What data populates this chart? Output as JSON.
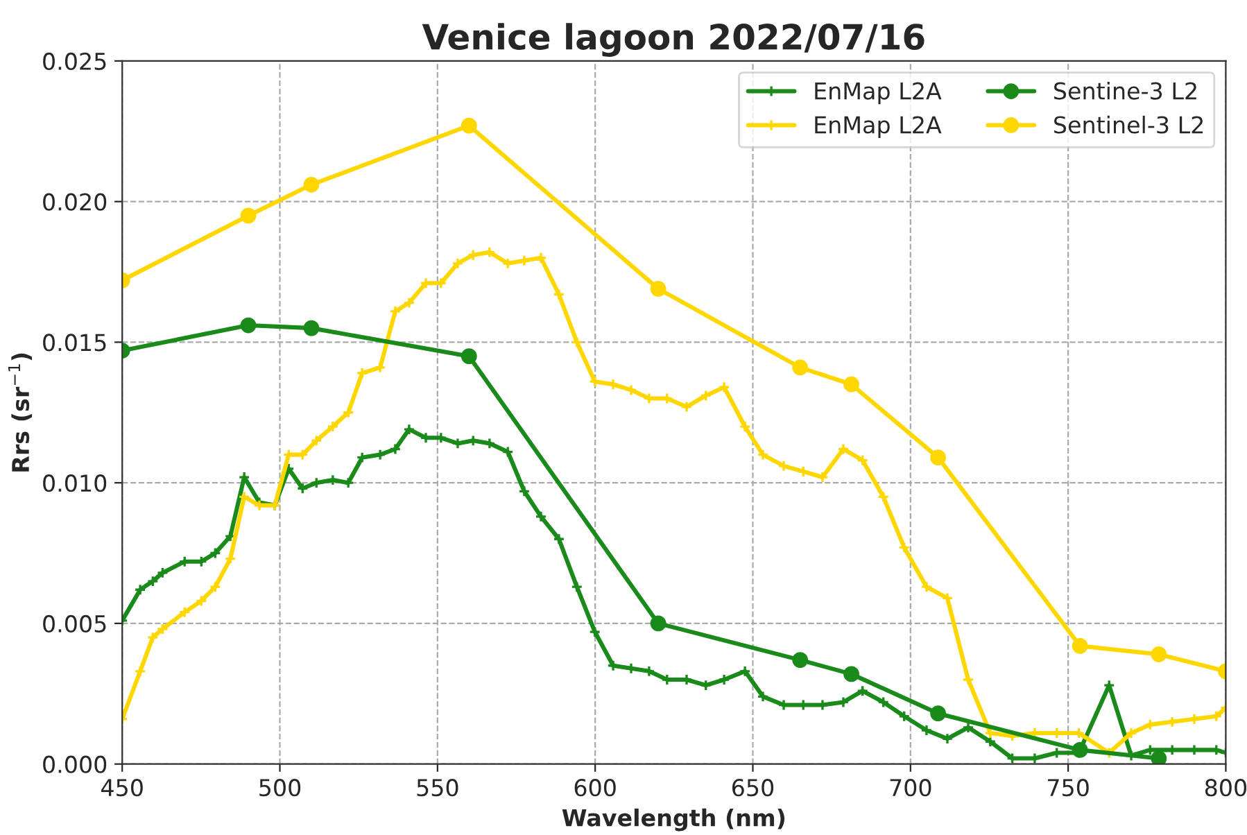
{
  "chart_data": {
    "type": "line",
    "title": "Venice lagoon 2022/07/16",
    "xlabel": "Wavelength (nm)",
    "ylabel": "Rrs (sr$^{−1}$)",
    "xlim": [
      450,
      800
    ],
    "xticks": [
      450,
      500,
      550,
      600,
      650,
      700,
      750,
      800
    ],
    "ylim": [
      0,
      0.025
    ],
    "yticks": [
      {
        "value": 0,
        "label": "0.000"
      },
      {
        "value": 0.005,
        "label": "0.005"
      },
      {
        "value": 0.01,
        "label": "0.010"
      },
      {
        "value": 0.015,
        "label": "0.015"
      },
      {
        "value": 0.02,
        "label": "0.020"
      },
      {
        "value": 0.025,
        "label": "0.025"
      }
    ],
    "grid": true,
    "legend": "top right",
    "line_style": "solid",
    "series": [
      {
        "name": "EnMap L2A",
        "color": "#1a8a1a",
        "marker": "cross",
        "x": [
          450,
          455.7,
          459.7,
          462.8,
          469.8,
          475.1,
          479.5,
          484.3,
          488.7,
          493.5,
          498.4,
          502.8,
          507.2,
          511.6,
          516.8,
          521.7,
          526.1,
          531.8,
          536.6,
          541.0,
          546.3,
          551.1,
          556.4,
          561.3,
          566.5,
          572.3,
          577.5,
          582.8,
          588.5,
          594.2,
          599.9,
          605.7,
          611.4,
          617.1,
          622.8,
          629.0,
          635.1,
          640.9,
          647.5,
          653.2,
          659.8,
          666.0,
          672.1,
          678.7,
          684.8,
          691.4,
          698.0,
          705.1,
          711.7,
          718.3,
          725.3,
          732.3,
          739.4,
          746.4,
          753.4,
          763,
          770,
          776,
          783,
          790,
          797,
          800
        ],
        "values": [
          0.0051,
          0.0062,
          0.0065,
          0.0068,
          0.0072,
          0.0072,
          0.0075,
          0.0081,
          0.0102,
          0.0093,
          0.0092,
          0.0105,
          0.0098,
          0.01,
          0.0101,
          0.01,
          0.0109,
          0.011,
          0.0112,
          0.0119,
          0.0116,
          0.0116,
          0.0114,
          0.0115,
          0.0114,
          0.0111,
          0.0097,
          0.0088,
          0.008,
          0.0063,
          0.0047,
          0.0035,
          0.0034,
          0.0033,
          0.003,
          0.003,
          0.0028,
          0.003,
          0.0033,
          0.0024,
          0.0021,
          0.0021,
          0.0021,
          0.0022,
          0.0026,
          0.0022,
          0.0017,
          0.0012,
          0.0009,
          0.0013,
          0.0008,
          0.0002,
          0.0002,
          0.0004,
          0.0004,
          0.0028,
          0.0003,
          0.0005,
          0.0005,
          0.0005,
          0.0005,
          0.0004
        ]
      },
      {
        "name": "EnMap L2A",
        "color": "#ffd700",
        "marker": "cross",
        "x": [
          450,
          455.7,
          459.7,
          462.8,
          469.8,
          475.1,
          479.5,
          484.3,
          488.7,
          493.5,
          498.4,
          502.8,
          507.2,
          511.6,
          516.8,
          521.7,
          526.1,
          531.8,
          536.6,
          541.0,
          546.3,
          551.1,
          556.4,
          561.3,
          566.5,
          572.3,
          577.5,
          582.8,
          588.5,
          594.2,
          599.9,
          605.7,
          611.4,
          617.1,
          622.8,
          629.0,
          635.1,
          640.9,
          647.5,
          653.2,
          659.8,
          666.0,
          672.1,
          678.7,
          684.8,
          691.4,
          698.0,
          705.1,
          711.7,
          718.3,
          725.3,
          732.3,
          739.4,
          746.4,
          753.4,
          763,
          770,
          776,
          783,
          790,
          797,
          800
        ],
        "values": [
          0.0016,
          0.0033,
          0.0045,
          0.0048,
          0.0054,
          0.0058,
          0.0063,
          0.0073,
          0.0095,
          0.0092,
          0.0092,
          0.011,
          0.011,
          0.0115,
          0.012,
          0.0125,
          0.0139,
          0.0141,
          0.0161,
          0.0164,
          0.0171,
          0.0171,
          0.0178,
          0.0181,
          0.0182,
          0.0178,
          0.0179,
          0.018,
          0.0167,
          0.015,
          0.0136,
          0.0135,
          0.0133,
          0.013,
          0.013,
          0.0127,
          0.0131,
          0.0134,
          0.012,
          0.011,
          0.0106,
          0.0104,
          0.0102,
          0.0112,
          0.0108,
          0.0095,
          0.0077,
          0.0063,
          0.0059,
          0.003,
          0.0011,
          0.001,
          0.0011,
          0.0011,
          0.0011,
          0.0004,
          0.0011,
          0.0014,
          0.0015,
          0.0016,
          0.0017,
          0.002
        ]
      },
      {
        "name": "Sentine-3 L2",
        "color": "#1a8a1a",
        "marker": "circle",
        "x": [
          450,
          490,
          510,
          560,
          620,
          665,
          681.25,
          708.75,
          753.75,
          778.75
        ],
        "values": [
          0.0147,
          0.0156,
          0.0155,
          0.0145,
          0.005,
          0.0037,
          0.0032,
          0.0018,
          0.0005,
          0.0002
        ]
      },
      {
        "name": "Sentinel-3 L2",
        "color": "#ffd700",
        "marker": "circle",
        "x": [
          450,
          490,
          510,
          560,
          620,
          665,
          681.25,
          708.75,
          753.75,
          778.75,
          800
        ],
        "values": [
          0.0172,
          0.0195,
          0.0206,
          0.0227,
          0.0169,
          0.0141,
          0.0135,
          0.0109,
          0.0042,
          0.0039,
          0.0033
        ]
      }
    ]
  }
}
